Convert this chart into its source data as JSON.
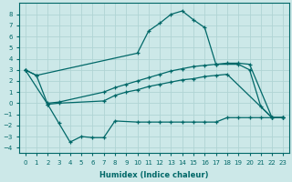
{
  "bg_color": "#cce8e8",
  "grid_color": "#b0d4d4",
  "line_color": "#006868",
  "xlabel": "Humidex (Indice chaleur)",
  "xlim": [
    -0.5,
    23.5
  ],
  "ylim": [
    -4.5,
    9.0
  ],
  "xticks": [
    0,
    1,
    2,
    3,
    4,
    5,
    6,
    7,
    8,
    9,
    10,
    11,
    12,
    13,
    14,
    15,
    16,
    17,
    18,
    19,
    20,
    21,
    22,
    23
  ],
  "yticks": [
    -4,
    -3,
    -2,
    -1,
    0,
    1,
    2,
    3,
    4,
    5,
    6,
    7,
    8
  ],
  "curve_top_x": [
    0,
    1,
    10,
    11,
    12,
    13,
    14,
    15,
    16,
    17,
    19,
    20,
    21,
    22,
    23
  ],
  "curve_top_y": [
    3.0,
    2.5,
    4.5,
    6.5,
    7.2,
    8.0,
    8.3,
    7.5,
    6.8,
    3.5,
    3.5,
    3.0,
    -0.3,
    -1.3,
    -1.3
  ],
  "curve_mid_upper_x": [
    2,
    3,
    7,
    8,
    9,
    10,
    11,
    12,
    13,
    14,
    15,
    16,
    17,
    18,
    19,
    20,
    22,
    23
  ],
  "curve_mid_upper_y": [
    0.0,
    0.1,
    1.0,
    1.4,
    1.7,
    2.0,
    2.3,
    2.6,
    2.9,
    3.1,
    3.3,
    3.4,
    3.5,
    3.6,
    3.6,
    3.5,
    -1.3,
    -1.3
  ],
  "curve_mid_lower_x": [
    0,
    2,
    3,
    7,
    8,
    9,
    10,
    11,
    12,
    13,
    14,
    15,
    16,
    17,
    18,
    22,
    23
  ],
  "curve_mid_lower_y": [
    3.0,
    -0.1,
    0.0,
    0.2,
    0.7,
    1.0,
    1.2,
    1.5,
    1.7,
    1.9,
    2.1,
    2.2,
    2.4,
    2.5,
    2.6,
    -1.3,
    -1.3
  ],
  "curve_bot_x": [
    0,
    1,
    2,
    3,
    4,
    5,
    6,
    7,
    8,
    10,
    11,
    12,
    13,
    14,
    15,
    16,
    17,
    18,
    19,
    20,
    21,
    22,
    23
  ],
  "curve_bot_y": [
    3.0,
    2.5,
    -0.1,
    -1.8,
    -3.5,
    -3.0,
    -3.1,
    -3.1,
    -1.6,
    -1.7,
    -1.7,
    -1.7,
    -1.7,
    -1.7,
    -1.7,
    -1.7,
    -1.7,
    -1.3,
    -1.3,
    -1.3,
    -1.3,
    -1.3,
    -1.3
  ]
}
